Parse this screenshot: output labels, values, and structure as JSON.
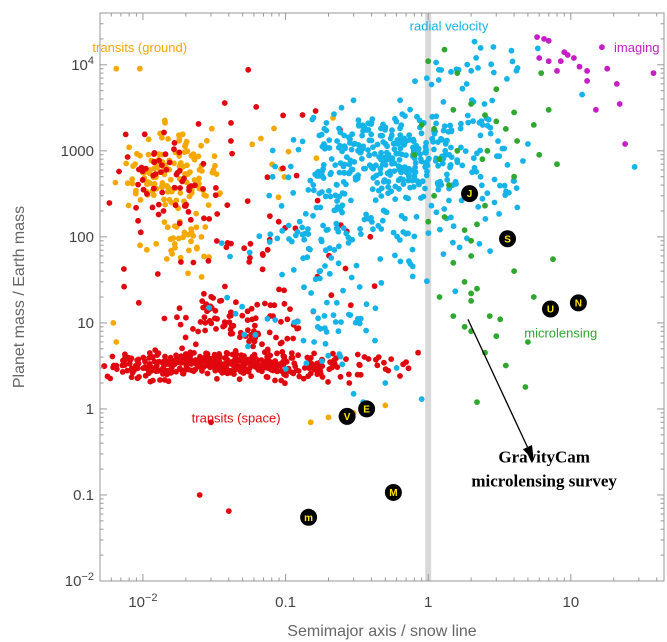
{
  "chart_data": {
    "type": "scatter",
    "title": "",
    "xlabel": "Semimajor axis / snow line",
    "ylabel": "Planet mass / Earth mass",
    "x_scale": "log",
    "y_scale": "log",
    "xlim": [
      0.005,
      45
    ],
    "ylim": [
      0.01,
      40000
    ],
    "x_ticks": [
      {
        "value": 0.01,
        "label": "10",
        "sup": "−2"
      },
      {
        "value": 0.1,
        "label": "0.1",
        "sup": ""
      },
      {
        "value": 1,
        "label": "1",
        "sup": ""
      },
      {
        "value": 10,
        "label": "10",
        "sup": ""
      }
    ],
    "y_ticks": [
      {
        "value": 0.01,
        "label": "10",
        "sup": "−2"
      },
      {
        "value": 0.1,
        "label": "0.1",
        "sup": ""
      },
      {
        "value": 1,
        "label": "1",
        "sup": ""
      },
      {
        "value": 10,
        "label": "10",
        "sup": ""
      },
      {
        "value": 100,
        "label": "100",
        "sup": ""
      },
      {
        "value": 1000,
        "label": "1000",
        "sup": ""
      },
      {
        "value": 10000,
        "label": "10",
        "sup": "4"
      }
    ],
    "snow_line": {
      "x": 1,
      "color": "#d9d9d9"
    },
    "series": [
      {
        "name": "transits (ground)",
        "color": "#f5a800",
        "clusters": [
          {
            "n": 130,
            "logx": [
              -2.1,
              -1.5
            ],
            "logy": [
              2.3,
              3.1
            ]
          },
          {
            "n": 35,
            "logx": [
              -1.9,
              -1.5
            ],
            "logy": [
              1.6,
              2.3
            ]
          },
          {
            "n": 12,
            "logx": [
              -1.5,
              -0.7
            ],
            "logy": [
              2.5,
              3.6
            ]
          }
        ],
        "points": [
          [
            0.0065,
            9000
          ],
          [
            0.0095,
            9000
          ],
          [
            0.008,
            1100
          ],
          [
            0.0062,
            10
          ],
          [
            0.0065,
            6
          ],
          [
            0.15,
            0.7
          ],
          [
            0.2,
            0.8
          ],
          [
            0.3,
            0.9
          ],
          [
            0.5,
            1.1
          ]
        ]
      },
      {
        "name": "transits (space)",
        "color": "#e0070e",
        "clusters": [
          {
            "n": 400,
            "logx": [
              -2.2,
              -0.6
            ],
            "logy": [
              0.38,
              0.65
            ]
          },
          {
            "n": 90,
            "logx": [
              -1.8,
              -0.9
            ],
            "logy": [
              0.65,
              1.25
            ]
          },
          {
            "n": 60,
            "logx": [
              -2.2,
              -1.5
            ],
            "logy": [
              2.2,
              3.2
            ]
          },
          {
            "n": 45,
            "logx": [
              -2.0,
              -0.5
            ],
            "logy": [
              1.2,
              2.5
            ]
          },
          {
            "n": 14,
            "logx": [
              -1.8,
              -0.6
            ],
            "logy": [
              2.6,
              3.9
            ]
          }
        ],
        "points": [
          [
            0.0065,
            3.2
          ],
          [
            0.0075,
            4.0
          ],
          [
            0.011,
            2.6
          ],
          [
            0.04,
            0.065
          ],
          [
            0.025,
            0.1
          ],
          [
            0.03,
            0.7
          ],
          [
            0.28,
            2.0
          ],
          [
            0.32,
            2.5
          ],
          [
            0.45,
            4.0
          ],
          [
            0.55,
            3.8
          ],
          [
            0.7,
            3.5
          ],
          [
            0.85,
            4.5
          ]
        ]
      },
      {
        "name": "radial velocity",
        "color": "#15b3e8",
        "clusters": [
          {
            "n": 320,
            "logx": [
              -0.8,
              0.25
            ],
            "logy": [
              2.5,
              3.4
            ]
          },
          {
            "n": 130,
            "logx": [
              -1.2,
              0.2
            ],
            "logy": [
              1.5,
              2.6
            ]
          },
          {
            "n": 45,
            "logx": [
              -1.4,
              -0.3
            ],
            "logy": [
              0.5,
              1.5
            ]
          },
          {
            "n": 50,
            "logx": [
              0.0,
              0.6
            ],
            "logy": [
              3.0,
              4.4
            ]
          },
          {
            "n": 25,
            "logx": [
              0.2,
              0.7
            ],
            "logy": [
              2.2,
              3.0
            ]
          }
        ],
        "points": [
          [
            0.14,
            3.4
          ],
          [
            0.18,
            3.6
          ],
          [
            0.25,
            3.3
          ],
          [
            0.3,
            1.5
          ],
          [
            0.35,
            1.2
          ],
          [
            0.5,
            2.0
          ],
          [
            0.6,
            3.0
          ],
          [
            0.9,
            1.3
          ],
          [
            12,
            4500
          ],
          [
            28,
            650
          ],
          [
            5,
            1200
          ]
        ]
      },
      {
        "name": "microlensing",
        "color": "#2ea82e",
        "points": [
          [
            0.8,
            900
          ],
          [
            1.1,
            1800
          ],
          [
            1.2,
            800
          ],
          [
            1.0,
            11000
          ],
          [
            1.3,
            15000
          ],
          [
            1.6,
            8000
          ],
          [
            1.5,
            3000
          ],
          [
            2.0,
            3500
          ],
          [
            2.5,
            2600
          ],
          [
            3.0,
            5200
          ],
          [
            4.0,
            2800
          ],
          [
            3.5,
            1800
          ],
          [
            2.6,
            1000
          ],
          [
            4.2,
            1300
          ],
          [
            5.5,
            2000
          ],
          [
            7.0,
            3000
          ],
          [
            6.0,
            900
          ],
          [
            1.1,
            300
          ],
          [
            1.4,
            400
          ],
          [
            1.8,
            120
          ],
          [
            2.2,
            140
          ],
          [
            1.0,
            150
          ],
          [
            1.3,
            170
          ],
          [
            2.0,
            60
          ],
          [
            2.5,
            230
          ],
          [
            4.0,
            500
          ],
          [
            4.0,
            40
          ],
          [
            5.5,
            20
          ],
          [
            7.5,
            55
          ],
          [
            1.5,
            50
          ],
          [
            1.8,
            30
          ],
          [
            2.0,
            22
          ],
          [
            2.2,
            25
          ],
          [
            2.7,
            12
          ],
          [
            3.2,
            11
          ],
          [
            2.0,
            8
          ],
          [
            3.0,
            7
          ],
          [
            5.0,
            6
          ],
          [
            3.5,
            3.2
          ],
          [
            4.8,
            1.8
          ],
          [
            2.2,
            1.2
          ],
          [
            2.5,
            4.5
          ],
          [
            1.8,
            9
          ],
          [
            6.2,
            8000
          ],
          [
            8.0,
            700
          ],
          [
            2.0,
            18
          ],
          [
            1.5,
            12
          ],
          [
            1.2,
            20
          ],
          [
            3.0,
            2200
          ],
          [
            2.0,
            90
          ],
          [
            0.9,
            2000
          ],
          [
            1.6,
            1000
          ],
          [
            2.4,
            800
          ]
        ]
      },
      {
        "name": "imaging",
        "color": "#c41ec4",
        "points": [
          [
            5.8,
            21000
          ],
          [
            6.5,
            20000
          ],
          [
            7.0,
            19000
          ],
          [
            6.0,
            12000
          ],
          [
            7.0,
            11000
          ],
          [
            8.5,
            11000
          ],
          [
            9.5,
            13000
          ],
          [
            10.5,
            12000
          ],
          [
            8.0,
            8500
          ],
          [
            11.5,
            9500
          ],
          [
            16.5,
            16000
          ],
          [
            13.0,
            8500
          ],
          [
            18.0,
            9000
          ],
          [
            21.0,
            6000
          ],
          [
            38.0,
            8000
          ],
          [
            22.0,
            3500
          ],
          [
            15.0,
            3000
          ],
          [
            24.0,
            1200
          ],
          [
            47.0,
            7500
          ],
          [
            13.0,
            6500
          ],
          [
            9.0,
            14000
          ]
        ]
      }
    ],
    "series_labels": [
      {
        "text": "transits (ground)",
        "color": "#f5a800",
        "x": 0.0095,
        "y": 14000
      },
      {
        "text": "radial velocity",
        "color": "#15b3e8",
        "x": 1.4,
        "y": 25000
      },
      {
        "text": "imaging",
        "color": "#c41ec4",
        "x": 29,
        "y": 14000
      },
      {
        "text": "microlensing",
        "color": "#2ea82e",
        "x": 8.5,
        "y": 6.8
      },
      {
        "text": "transits (space)",
        "color": "#e0070e",
        "x": 0.045,
        "y": 0.7
      }
    ],
    "solar_system": [
      {
        "letter": "J",
        "x": 1.95,
        "y": 318
      },
      {
        "letter": "S",
        "x": 3.6,
        "y": 95
      },
      {
        "letter": "U",
        "x": 7.2,
        "y": 14.5
      },
      {
        "letter": "N",
        "x": 11.3,
        "y": 17.1
      },
      {
        "letter": "E",
        "x": 0.37,
        "y": 1.0
      },
      {
        "letter": "V",
        "x": 0.27,
        "y": 0.82
      },
      {
        "letter": "M",
        "x": 0.57,
        "y": 0.107
      },
      {
        "letter": "m",
        "x": 0.145,
        "y": 0.055
      }
    ],
    "survey": {
      "line1": "GravityCam",
      "line2": "microlensing survey",
      "arrow_from": {
        "x": 1.9,
        "y": 11
      },
      "arrow_to": {
        "x": 5.5,
        "y": 0.25
      },
      "label_x": 6.5,
      "label_y": 0.14
    }
  }
}
